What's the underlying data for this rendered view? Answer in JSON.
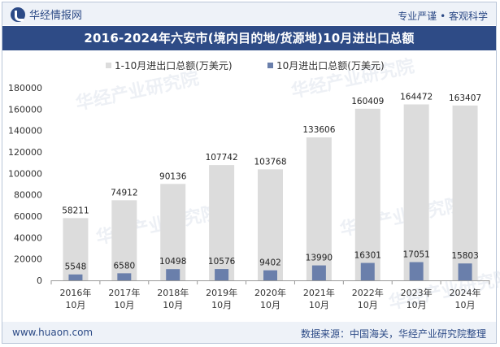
{
  "header": {
    "logo_text": "华经情报网",
    "tagline": "专业严谨 • 客观科学"
  },
  "footer": {
    "site": "www.huaon.com",
    "source": "数据来源：中国海关，华经产业研究院整理"
  },
  "watermark": "华经产业研究院",
  "chart_data": {
    "type": "bar",
    "title": "2016-2024年六安市(境内目的地/货源地)10月进出口总额",
    "categories": [
      [
        "2016年",
        "10月"
      ],
      [
        "2017年",
        "10月"
      ],
      [
        "2018年",
        "10月"
      ],
      [
        "2019年",
        "10月"
      ],
      [
        "2020年",
        "10月"
      ],
      [
        "2021年",
        "10月"
      ],
      [
        "2022年",
        "10月"
      ],
      [
        "2023年",
        "10月"
      ],
      [
        "2024年",
        "10月"
      ]
    ],
    "series": [
      {
        "name": "1-10月进出口总额(万美元)",
        "color": "#dcdcdc",
        "values": [
          58211,
          74912,
          90136,
          107742,
          103768,
          133606,
          160409,
          164472,
          163407
        ]
      },
      {
        "name": "10月进出口总额(万美元)",
        "color": "#6a7fab",
        "values": [
          5548,
          6580,
          10498,
          10576,
          9402,
          13990,
          16301,
          17051,
          15803
        ]
      }
    ],
    "ylim": [
      0,
      180000
    ],
    "yticks": [
      0,
      20000,
      40000,
      60000,
      80000,
      100000,
      120000,
      140000,
      160000,
      180000
    ],
    "legend_position": "top-center",
    "grid": false
  }
}
